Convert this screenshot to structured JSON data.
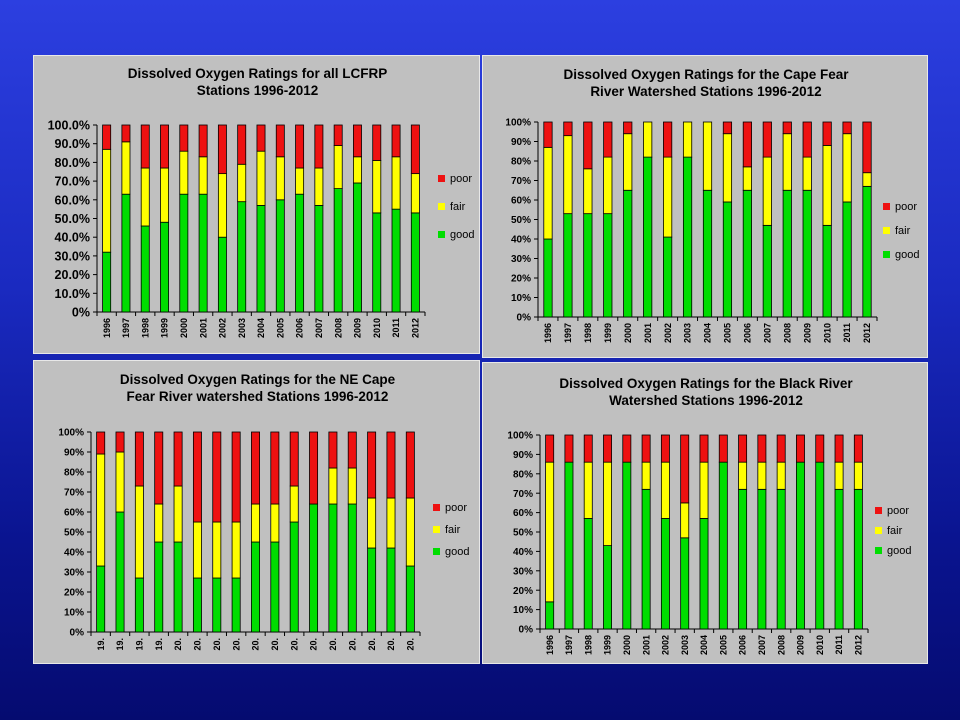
{
  "legend_labels": [
    "poor",
    "fair",
    "good"
  ],
  "colors": {
    "good": "#00dd00",
    "fair": "#ffff00",
    "poor": "#ee1111",
    "background": "#c0c0c0"
  },
  "chart_data": [
    {
      "type": "bar",
      "stacked": true,
      "title_lines": [
        "Dissolved Oxygen Ratings for all LCFRP",
        "Stations 1996-2012"
      ],
      "categories": [
        "1996",
        "1997",
        "1998",
        "1999",
        "2000",
        "2001",
        "2002",
        "2003",
        "2004",
        "2005",
        "2006",
        "2007",
        "2008",
        "2009",
        "2010",
        "2011",
        "2012"
      ],
      "y_ticks": [
        "0%",
        "10.0%",
        "20.0%",
        "30.0%",
        "40.0%",
        "50.0%",
        "60.0%",
        "70.0%",
        "80.0%",
        "90.0%",
        "100.0%"
      ],
      "ylim": [
        0,
        100
      ],
      "legend_position": "right",
      "series": [
        {
          "name": "good",
          "values": [
            32,
            63,
            46,
            48,
            63,
            63,
            40,
            59,
            57,
            60,
            63,
            57,
            66,
            69,
            53,
            55,
            53
          ]
        },
        {
          "name": "fair",
          "values": [
            55,
            28,
            31,
            29,
            23,
            20,
            34,
            20,
            29,
            23,
            14,
            20,
            23,
            14,
            28,
            28,
            21
          ]
        },
        {
          "name": "poor",
          "values": [
            13,
            9,
            23,
            23,
            14,
            17,
            26,
            21,
            14,
            17,
            23,
            23,
            11,
            17,
            19,
            17,
            26
          ]
        }
      ]
    },
    {
      "type": "bar",
      "stacked": true,
      "title_lines": [
        "Dissolved Oxygen Ratings for the Cape Fear",
        "River Watershed Stations 1996-2012"
      ],
      "categories": [
        "1996",
        "1997",
        "1998",
        "1999",
        "2000",
        "2001",
        "2002",
        "2003",
        "2004",
        "2005",
        "2006",
        "2007",
        "2008",
        "2009",
        "2010",
        "2011",
        "2012"
      ],
      "y_ticks": [
        "0%",
        "10%",
        "20%",
        "30%",
        "40%",
        "50%",
        "60%",
        "70%",
        "80%",
        "90%",
        "100%"
      ],
      "ylim": [
        0,
        100
      ],
      "legend_position": "right",
      "series": [
        {
          "name": "good",
          "values": [
            40,
            53,
            53,
            53,
            65,
            82,
            41,
            82,
            65,
            59,
            65,
            47,
            65,
            65,
            47,
            59,
            67
          ]
        },
        {
          "name": "fair",
          "values": [
            47,
            40,
            23,
            29,
            29,
            18,
            41,
            18,
            35,
            35,
            12,
            35,
            29,
            17,
            41,
            35,
            7
          ]
        },
        {
          "name": "poor",
          "values": [
            13,
            7,
            24,
            18,
            6,
            0,
            18,
            0,
            0,
            6,
            23,
            18,
            6,
            18,
            12,
            6,
            26
          ]
        }
      ]
    },
    {
      "type": "bar",
      "stacked": true,
      "title_lines": [
        "Dissolved Oxygen Ratings for the NE Cape",
        "Fear River watershed Stations 1996-2012"
      ],
      "categories": [
        "19.",
        "19.",
        "19.",
        "19.",
        "20.",
        "20.",
        "20.",
        "20.",
        "20.",
        "20.",
        "20.",
        "20.",
        "20.",
        "20.",
        "20.",
        "20.",
        "20."
      ],
      "y_ticks": [
        "0%",
        "10%",
        "20%",
        "30%",
        "40%",
        "50%",
        "60%",
        "70%",
        "80%",
        "90%",
        "100%"
      ],
      "ylim": [
        0,
        100
      ],
      "legend_position": "right",
      "series": [
        {
          "name": "good",
          "values": [
            33,
            60,
            27,
            45,
            45,
            27,
            27,
            27,
            45,
            45,
            55,
            64,
            64,
            64,
            42,
            42,
            33
          ]
        },
        {
          "name": "fair",
          "values": [
            56,
            30,
            46,
            19,
            28,
            28,
            28,
            28,
            19,
            19,
            18,
            0,
            18,
            18,
            25,
            25,
            34
          ]
        },
        {
          "name": "poor",
          "values": [
            11,
            10,
            27,
            36,
            27,
            45,
            45,
            45,
            36,
            36,
            27,
            36,
            18,
            18,
            33,
            33,
            33
          ]
        }
      ]
    },
    {
      "type": "bar",
      "stacked": true,
      "title_lines": [
        "Dissolved Oxygen Ratings for the Black River",
        "Watershed Stations 1996-2012"
      ],
      "categories": [
        "1996",
        "1997",
        "1998",
        "1999",
        "2000",
        "2001",
        "2002",
        "2003",
        "2004",
        "2005",
        "2006",
        "2007",
        "2008",
        "2009",
        "2010",
        "2011",
        "2012"
      ],
      "y_ticks": [
        "0%",
        "10%",
        "20%",
        "30%",
        "40%",
        "50%",
        "60%",
        "70%",
        "80%",
        "90%",
        "100%"
      ],
      "ylim": [
        0,
        100
      ],
      "legend_position": "right",
      "series": [
        {
          "name": "good",
          "values": [
            14,
            86,
            57,
            43,
            86,
            72,
            57,
            47,
            57,
            86,
            72,
            72,
            72,
            86,
            86,
            72,
            72
          ]
        },
        {
          "name": "fair",
          "values": [
            72,
            0,
            29,
            43,
            0,
            14,
            29,
            18,
            29,
            0,
            14,
            14,
            14,
            0,
            0,
            14,
            14
          ]
        },
        {
          "name": "poor",
          "values": [
            14,
            14,
            14,
            14,
            14,
            14,
            14,
            35,
            14,
            14,
            14,
            14,
            14,
            14,
            14,
            14,
            14
          ]
        }
      ]
    }
  ]
}
